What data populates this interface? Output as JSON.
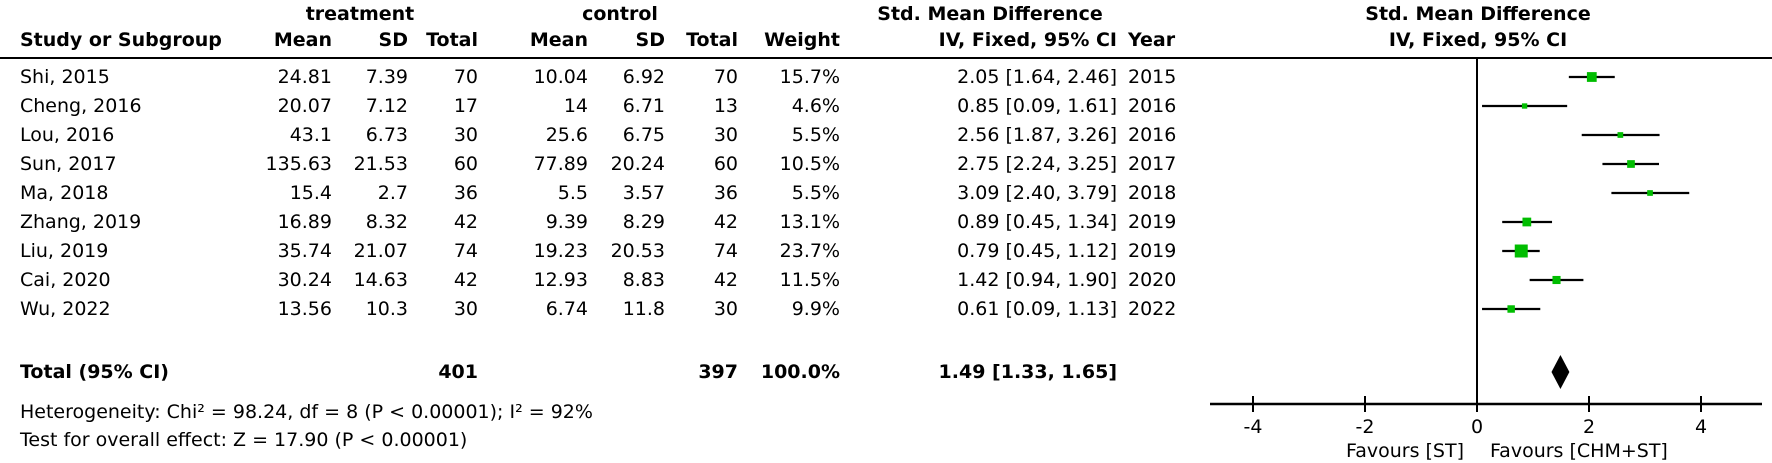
{
  "header": {
    "group_treatment": "treatment",
    "group_control": "control",
    "smd_left": "Std. Mean Difference",
    "smd_right": "Std. Mean Difference",
    "col_study": "Study or Subgroup",
    "col_mean_t": "Mean",
    "col_sd_t": "SD",
    "col_total_t": "Total",
    "col_mean_c": "Mean",
    "col_sd_c": "SD",
    "col_total_c": "Total",
    "col_weight": "Weight",
    "col_ci": "IV, Fixed, 95% CI",
    "col_year": "Year",
    "col_ci_right": "IV, Fixed, 95% CI"
  },
  "footer": {
    "heterogeneity": "Heterogeneity: Chi² = 98.24, df = 8 (P < 0.00001); I² = 92%",
    "overall_effect": "Test for overall effect: Z = 17.90 (P < 0.00001)"
  },
  "chart_data": {
    "type": "forest",
    "effect_measure": "Std. Mean Difference",
    "model": "IV, Fixed, 95% CI",
    "x_ticks": [
      -4,
      -2,
      0,
      2,
      4
    ],
    "x_tick_labels": [
      "-4",
      "-2",
      "0",
      "2",
      "4"
    ],
    "xlim": [
      -4.8,
      5.1
    ],
    "favours_left": "Favours [ST]",
    "favours_right": "Favours [CHM+ST]",
    "marker_color": "#00bd00",
    "line_color": "#000000",
    "studies": [
      {
        "study": "Shi, 2015",
        "mean_t": "24.81",
        "sd_t": "7.39",
        "total_t": "70",
        "mean_c": "10.04",
        "sd_c": "6.92",
        "total_c": "70",
        "weight": "15.7%",
        "weight_pct": 15.7,
        "est": 2.05,
        "lo": 1.64,
        "hi": 2.46,
        "ci_text": "2.05 [1.64, 2.46]",
        "year": "2015"
      },
      {
        "study": "Cheng, 2016",
        "mean_t": "20.07",
        "sd_t": "7.12",
        "total_t": "17",
        "mean_c": "14",
        "sd_c": "6.71",
        "total_c": "13",
        "weight": "4.6%",
        "weight_pct": 4.6,
        "est": 0.85,
        "lo": 0.09,
        "hi": 1.61,
        "ci_text": "0.85 [0.09, 1.61]",
        "year": "2016"
      },
      {
        "study": "Lou, 2016",
        "mean_t": "43.1",
        "sd_t": "6.73",
        "total_t": "30",
        "mean_c": "25.6",
        "sd_c": "6.75",
        "total_c": "30",
        "weight": "5.5%",
        "weight_pct": 5.5,
        "est": 2.56,
        "lo": 1.87,
        "hi": 3.26,
        "ci_text": "2.56 [1.87, 3.26]",
        "year": "2016"
      },
      {
        "study": "Sun, 2017",
        "mean_t": "135.63",
        "sd_t": "21.53",
        "total_t": "60",
        "mean_c": "77.89",
        "sd_c": "20.24",
        "total_c": "60",
        "weight": "10.5%",
        "weight_pct": 10.5,
        "est": 2.75,
        "lo": 2.24,
        "hi": 3.25,
        "ci_text": "2.75 [2.24, 3.25]",
        "year": "2017"
      },
      {
        "study": "Ma, 2018",
        "mean_t": "15.4",
        "sd_t": "2.7",
        "total_t": "36",
        "mean_c": "5.5",
        "sd_c": "3.57",
        "total_c": "36",
        "weight": "5.5%",
        "weight_pct": 5.5,
        "est": 3.09,
        "lo": 2.4,
        "hi": 3.79,
        "ci_text": "3.09 [2.40, 3.79]",
        "year": "2018"
      },
      {
        "study": "Zhang, 2019",
        "mean_t": "16.89",
        "sd_t": "8.32",
        "total_t": "42",
        "mean_c": "9.39",
        "sd_c": "8.29",
        "total_c": "42",
        "weight": "13.1%",
        "weight_pct": 13.1,
        "est": 0.89,
        "lo": 0.45,
        "hi": 1.34,
        "ci_text": "0.89 [0.45, 1.34]",
        "year": "2019"
      },
      {
        "study": "Liu, 2019",
        "mean_t": "35.74",
        "sd_t": "21.07",
        "total_t": "74",
        "mean_c": "19.23",
        "sd_c": "20.53",
        "total_c": "74",
        "weight": "23.7%",
        "weight_pct": 23.7,
        "est": 0.79,
        "lo": 0.45,
        "hi": 1.12,
        "ci_text": "0.79 [0.45, 1.12]",
        "year": "2019"
      },
      {
        "study": "Cai, 2020",
        "mean_t": "30.24",
        "sd_t": "14.63",
        "total_t": "42",
        "mean_c": "12.93",
        "sd_c": "8.83",
        "total_c": "42",
        "weight": "11.5%",
        "weight_pct": 11.5,
        "est": 1.42,
        "lo": 0.94,
        "hi": 1.9,
        "ci_text": "1.42 [0.94, 1.90]",
        "year": "2020"
      },
      {
        "study": "Wu, 2022",
        "mean_t": "13.56",
        "sd_t": "10.3",
        "total_t": "30",
        "mean_c": "6.74",
        "sd_c": "11.8",
        "total_c": "30",
        "weight": "9.9%",
        "weight_pct": 9.9,
        "est": 0.61,
        "lo": 0.09,
        "hi": 1.13,
        "ci_text": "0.61 [0.09, 1.13]",
        "year": "2022"
      }
    ],
    "total": {
      "label": "Total (95% CI)",
      "total_t": "401",
      "total_c": "397",
      "weight": "100.0%",
      "est": 1.49,
      "lo": 1.33,
      "hi": 1.65,
      "ci_text": "1.49 [1.33, 1.65]"
    }
  }
}
